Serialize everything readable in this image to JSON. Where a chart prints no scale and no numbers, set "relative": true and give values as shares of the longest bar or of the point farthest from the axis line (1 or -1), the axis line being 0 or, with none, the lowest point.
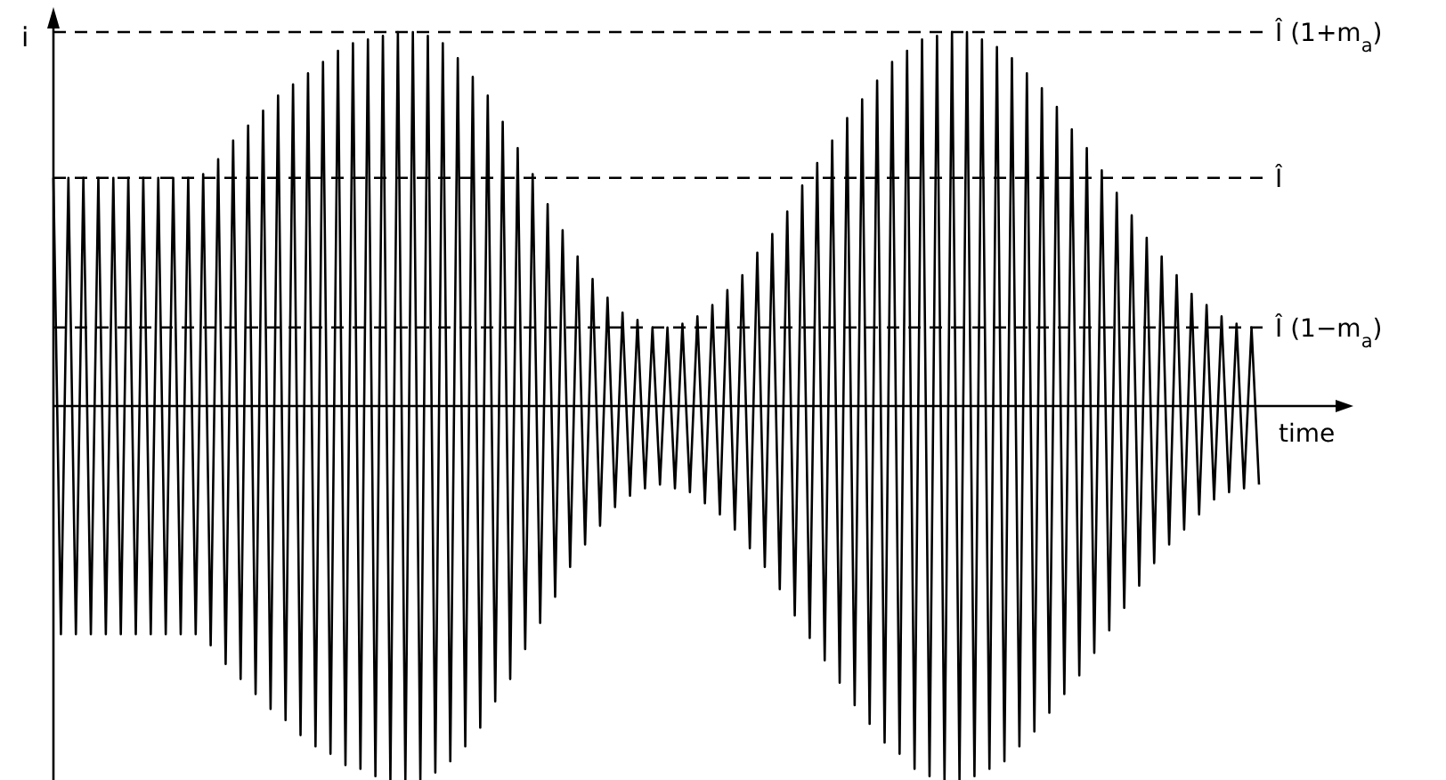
{
  "chart_data": {
    "type": "line",
    "relative": true,
    "xlabel": "time",
    "ylabel": "i",
    "line_style": "solid",
    "categories": [
      null,
      null,
      null,
      null,
      null,
      null,
      null,
      null,
      null,
      null,
      null,
      null,
      null,
      null,
      null,
      null,
      null,
      null,
      null,
      null,
      null,
      null,
      null,
      null,
      null,
      null,
      null,
      null,
      null,
      null,
      null,
      null,
      null,
      null,
      null,
      null,
      null,
      null,
      null,
      null,
      null,
      null,
      null,
      null,
      null,
      null,
      null,
      null,
      null,
      null,
      null,
      null,
      null,
      null,
      null,
      null,
      null,
      null,
      null,
      null,
      null,
      null,
      null,
      null,
      null,
      null,
      null,
      null,
      null,
      null,
      null,
      null,
      null,
      null,
      null,
      null,
      null,
      null,
      null,
      null,
      null,
      null,
      null,
      null,
      null,
      null,
      null,
      null,
      null,
      null,
      null,
      null,
      null,
      null,
      null,
      null,
      null,
      null,
      null,
      null,
      null,
      null,
      null,
      null,
      null,
      null,
      null,
      null,
      null,
      null,
      null,
      null,
      null,
      null,
      null,
      null,
      null,
      null,
      null,
      null,
      null,
      null,
      null,
      null,
      null,
      null,
      null,
      null,
      null,
      null,
      null,
      null,
      null,
      null,
      null,
      null,
      null,
      null,
      null,
      null,
      null,
      null,
      null,
      null,
      null,
      null,
      null,
      null,
      null,
      null,
      null,
      null,
      null,
      null,
      null,
      null,
      null,
      null,
      null,
      null,
      null,
      null
    ],
    "series": [
      {
        "color": "#000000",
        "values": [
          0.61,
          -0.61,
          0.61,
          -0.61,
          0.61,
          -0.61,
          0.61,
          -0.61,
          0.61,
          -0.61,
          0.61,
          -0.61,
          0.61,
          -0.61,
          0.61,
          -0.61,
          0.61,
          -0.61,
          0.61,
          -0.61,
          0.62,
          -0.64,
          0.66,
          -0.69,
          0.71,
          -0.73,
          0.75,
          -0.77,
          0.79,
          -0.81,
          0.83,
          -0.84,
          0.86,
          -0.88,
          0.89,
          -0.91,
          0.92,
          -0.93,
          0.95,
          -0.96,
          0.97,
          -0.97,
          0.98,
          -0.99,
          0.99,
          -1,
          1,
          -1,
          1,
          -1,
          0.99,
          -0.98,
          0.97,
          -0.95,
          0.93,
          -0.91,
          0.88,
          -0.86,
          0.83,
          -0.79,
          0.76,
          -0.73,
          0.69,
          -0.65,
          0.62,
          -0.58,
          0.54,
          -0.51,
          0.47,
          -0.43,
          0.4,
          -0.37,
          0.34,
          -0.32,
          0.29,
          -0.27,
          0.25,
          -0.24,
          0.23,
          -0.22,
          0.21,
          -0.21,
          0.21,
          -0.22,
          0.22,
          -0.23,
          0.24,
          -0.26,
          0.27,
          -0.29,
          0.31,
          -0.33,
          0.35,
          -0.38,
          0.41,
          -0.43,
          0.46,
          -0.49,
          0.52,
          -0.56,
          0.59,
          -0.62,
          0.65,
          -0.68,
          0.71,
          -0.74,
          0.77,
          -0.8,
          0.82,
          -0.85,
          0.87,
          -0.9,
          0.92,
          -0.93,
          0.95,
          -0.97,
          0.98,
          -0.99,
          0.99,
          -1,
          1,
          -1,
          1,
          -0.99,
          0.98,
          -0.97,
          0.96,
          -0.95,
          0.93,
          -0.91,
          0.89,
          -0.87,
          0.85,
          -0.82,
          0.8,
          -0.77,
          0.74,
          -0.72,
          0.69,
          -0.66,
          0.63,
          -0.6,
          0.57,
          -0.54,
          0.51,
          -0.48,
          0.45,
          -0.42,
          0.4,
          -0.37,
          0.35,
          -0.33,
          0.3,
          -0.29,
          0.27,
          -0.25,
          0.24,
          -0.23,
          0.22,
          -0.22,
          0.21,
          -0.21
        ]
      }
    ],
    "ref_lines": [
      {
        "axis": "y",
        "value": 1,
        "label": "Î (1+m$_{a}$)",
        "line_style": "dashed"
      },
      {
        "axis": "y",
        "value": 0.61,
        "label": "Î",
        "line_style": "dashed"
      },
      {
        "axis": "y",
        "value": 0.21,
        "label": "Î (1−m$_{a}$)",
        "line_style": "dashed"
      }
    ]
  }
}
